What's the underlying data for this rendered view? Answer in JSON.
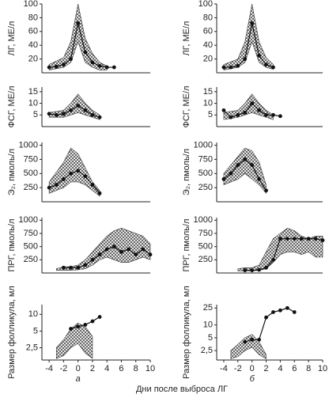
{
  "xlabel": "Дни после выброса ЛГ",
  "chart_data": [
    {
      "type": "line",
      "ylabel": "ЛГ, МЕ/л",
      "xlim": [
        -5,
        10
      ],
      "ylim": [
        0,
        100
      ],
      "yticks": [
        20,
        40,
        60,
        80,
        100
      ],
      "x": [
        -4,
        -3,
        -2,
        -1,
        0,
        1,
        2,
        3,
        4,
        5
      ],
      "values": [
        8,
        9,
        12,
        20,
        72,
        30,
        15,
        10,
        8,
        8
      ],
      "band_x": [
        -4,
        -2,
        -1,
        0,
        1,
        2,
        3,
        4
      ],
      "band_high": [
        12,
        22,
        45,
        100,
        50,
        28,
        15,
        10
      ],
      "band_low": [
        4,
        8,
        15,
        45,
        15,
        8,
        4,
        4
      ]
    },
    {
      "type": "line",
      "ylabel": "ФСГ, МЕ/л",
      "xlim": [
        -5,
        10
      ],
      "ylim": [
        0,
        17
      ],
      "yticks": [
        5,
        10,
        15
      ],
      "x": [
        -4,
        -3,
        -2,
        -1,
        0,
        1,
        2,
        3
      ],
      "values": [
        5.5,
        5,
        5.5,
        7,
        9,
        7,
        5,
        4
      ],
      "band_x": [
        -4,
        -2,
        -1,
        0,
        1,
        2,
        3
      ],
      "band_high": [
        6,
        7,
        10,
        14,
        10,
        7,
        5
      ],
      "band_low": [
        4,
        4,
        5,
        6,
        5,
        4,
        3
      ]
    },
    {
      "type": "line",
      "ylabel": "Э₂, пмоль/л",
      "xlim": [
        -5,
        10
      ],
      "ylim": [
        0,
        1050
      ],
      "yticks": [
        250,
        500,
        750,
        1000
      ],
      "x": [
        -4,
        -3,
        -2,
        -1,
        0,
        1,
        2,
        3
      ],
      "values": [
        250,
        300,
        400,
        500,
        550,
        450,
        300,
        150
      ],
      "band_x": [
        -4,
        -2,
        -1,
        0,
        1,
        2,
        3
      ],
      "band_high": [
        350,
        700,
        950,
        850,
        600,
        350,
        200
      ],
      "band_low": [
        150,
        250,
        350,
        350,
        300,
        200,
        100
      ]
    },
    {
      "type": "line",
      "ylabel": "ПРГ, пмоль/л",
      "xlim": [
        -5,
        10
      ],
      "ylim": [
        0,
        1050
      ],
      "yticks": [
        250,
        500,
        750,
        1000
      ],
      "x": [
        -2,
        -1,
        0,
        1,
        2,
        3,
        4,
        5,
        6,
        7,
        8,
        9,
        10
      ],
      "values": [
        100,
        100,
        100,
        150,
        250,
        350,
        450,
        500,
        400,
        450,
        350,
        450,
        350
      ],
      "band_x": [
        -3,
        -2,
        -1,
        0,
        1,
        2,
        3,
        4,
        5,
        6,
        7,
        8,
        9,
        10
      ],
      "band_high": [
        80,
        120,
        120,
        150,
        250,
        400,
        550,
        700,
        800,
        850,
        800,
        750,
        700,
        550
      ],
      "band_low": [
        50,
        50,
        50,
        60,
        80,
        150,
        250,
        300,
        250,
        200,
        200,
        250,
        300,
        250
      ]
    },
    {
      "type": "line",
      "ylabel": "Размер фолликула, мл",
      "log": true,
      "xlim": [
        -5,
        10
      ],
      "ylim": [
        1.5,
        15
      ],
      "yticks": [
        {
          "value": 2.5,
          "label": "2,5"
        },
        5,
        10
      ],
      "xticks": [
        -4,
        -2,
        0,
        2,
        4,
        6,
        8,
        10
      ],
      "panel_label": "а",
      "x": [
        -1,
        0,
        1,
        2,
        3
      ],
      "values": [
        5.5,
        6,
        6.5,
        7.5,
        9
      ],
      "band_x": [
        -3,
        -2,
        -1,
        0,
        1,
        2
      ],
      "band_high": [
        2.5,
        3.5,
        5.5,
        7,
        6,
        4
      ],
      "band_low": [
        1.6,
        1.8,
        2.5,
        3,
        2,
        1.6
      ]
    },
    {
      "type": "line",
      "ylabel": "ЛГ, МЕ/л",
      "xlim": [
        -5,
        10
      ],
      "ylim": [
        0,
        100
      ],
      "yticks": [
        20,
        40,
        60,
        80,
        100
      ],
      "x": [
        -4,
        -3,
        -2,
        -1,
        0,
        1,
        2,
        3
      ],
      "values": [
        8,
        8,
        10,
        20,
        72,
        25,
        12,
        8
      ],
      "band_x": [
        -4,
        -2,
        -1,
        0,
        1,
        2,
        3
      ],
      "band_high": [
        12,
        20,
        45,
        100,
        45,
        22,
        12
      ],
      "band_low": [
        4,
        8,
        15,
        45,
        15,
        8,
        5
      ]
    },
    {
      "type": "line",
      "ylabel": "ФСГ, МЕ/л",
      "xlim": [
        -5,
        10
      ],
      "ylim": [
        0,
        17
      ],
      "yticks": [
        5,
        10,
        15
      ],
      "x": [
        -4,
        -3,
        -2,
        -1,
        0,
        1,
        2,
        3,
        4
      ],
      "values": [
        7,
        4,
        5,
        6,
        10,
        7,
        5,
        5,
        4.5
      ],
      "band_x": [
        -4,
        -2,
        -1,
        0,
        1,
        2,
        3
      ],
      "band_high": [
        6,
        7,
        10,
        14,
        10,
        7,
        5
      ],
      "band_low": [
        3,
        4,
        5,
        6,
        5,
        4,
        3
      ]
    },
    {
      "type": "line",
      "ylabel": "Э₂, пмоль/л",
      "xlim": [
        -5,
        10
      ],
      "ylim": [
        0,
        1050
      ],
      "yticks": [
        250,
        500,
        750,
        1000
      ],
      "x": [
        -4,
        -3,
        -2,
        -1,
        0,
        1,
        2
      ],
      "values": [
        400,
        500,
        650,
        750,
        650,
        400,
        200
      ],
      "band_x": [
        -4,
        -2,
        -1,
        0,
        1,
        2
      ],
      "band_high": [
        500,
        800,
        950,
        900,
        700,
        300
      ],
      "band_low": [
        300,
        400,
        500,
        400,
        300,
        150
      ]
    },
    {
      "type": "line",
      "ylabel": "ПРГ, пмоль/л",
      "xlim": [
        -5,
        10
      ],
      "ylim": [
        0,
        1050
      ],
      "yticks": [
        250,
        500,
        750,
        1000
      ],
      "x": [
        -1,
        0,
        1,
        2,
        3,
        4,
        5,
        6,
        7,
        8,
        9,
        10
      ],
      "values": [
        50,
        50,
        60,
        100,
        250,
        650,
        650,
        650,
        650,
        650,
        650,
        620
      ],
      "band_x": [
        -2,
        -1,
        0,
        1,
        2,
        3,
        4,
        5,
        6,
        7,
        8,
        9,
        10
      ],
      "band_high": [
        80,
        100,
        100,
        150,
        400,
        650,
        750,
        850,
        800,
        700,
        650,
        700,
        700
      ],
      "band_low": [
        40,
        40,
        40,
        50,
        80,
        200,
        350,
        400,
        400,
        350,
        400,
        300,
        300
      ]
    },
    {
      "type": "line",
      "ylabel": "Размер фолликула, мл",
      "log": true,
      "xlim": [
        -5,
        10
      ],
      "ylim": [
        1.5,
        30
      ],
      "yticks": [
        {
          "value": 2.5,
          "label": "2,5"
        },
        5,
        10,
        25
      ],
      "xticks": [
        -4,
        -2,
        0,
        2,
        4,
        6,
        8,
        10
      ],
      "panel_label": "б",
      "x": [
        -1,
        0,
        1,
        2,
        3,
        4,
        5,
        6
      ],
      "values": [
        4,
        4.5,
        4.5,
        15,
        20,
        22,
        25,
        20
      ],
      "band_x": [
        -3,
        -2,
        -1,
        0,
        1,
        2
      ],
      "band_high": [
        2.5,
        3.5,
        5,
        6,
        4,
        2
      ],
      "band_low": [
        1.6,
        1.8,
        2.5,
        3,
        2,
        1.6
      ]
    }
  ]
}
